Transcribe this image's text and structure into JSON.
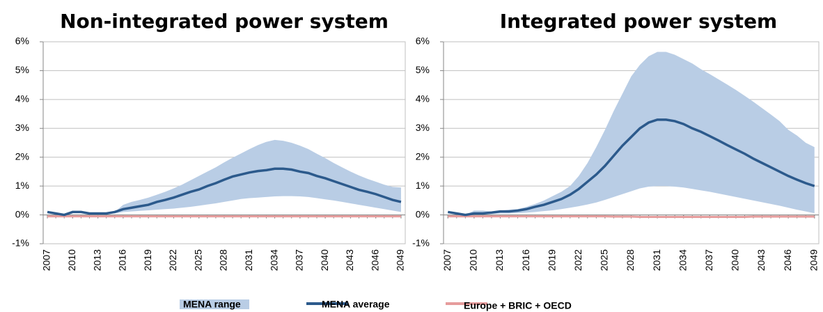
{
  "chart_data": [
    {
      "type": "line",
      "title": "Non-integrated power system",
      "x": [
        2007,
        2008,
        2009,
        2010,
        2011,
        2012,
        2013,
        2014,
        2015,
        2016,
        2017,
        2018,
        2019,
        2020,
        2021,
        2022,
        2023,
        2024,
        2025,
        2026,
        2027,
        2028,
        2029,
        2030,
        2031,
        2032,
        2033,
        2034,
        2035,
        2036,
        2037,
        2038,
        2039,
        2040,
        2041,
        2042,
        2043,
        2044,
        2045,
        2046,
        2047,
        2048,
        2049
      ],
      "xlim": [
        2006.5,
        2049.5
      ],
      "xticks": [
        2007,
        2010,
        2013,
        2016,
        2019,
        2022,
        2025,
        2028,
        2031,
        2034,
        2037,
        2040,
        2043,
        2046,
        2049
      ],
      "ylim": [
        -1,
        6
      ],
      "yticks": [
        {
          "value": -1,
          "label": "-1%"
        },
        {
          "value": 0,
          "label": "0%"
        },
        {
          "value": 1,
          "label": "1%"
        },
        {
          "value": 2,
          "label": "2%"
        },
        {
          "value": 3,
          "label": "3%"
        },
        {
          "value": 4,
          "label": "4%"
        },
        {
          "value": 5,
          "label": "5%"
        },
        {
          "value": 6,
          "label": "6%"
        }
      ],
      "grid": true,
      "range": {
        "name": "MENA range",
        "color": "#b9cde5",
        "low": [
          0.1,
          0.05,
          0,
          0.1,
          0.1,
          0.05,
          0.05,
          0.05,
          0.05,
          0.1,
          0.12,
          0.14,
          0.16,
          0.18,
          0.2,
          0.22,
          0.25,
          0.28,
          0.32,
          0.36,
          0.4,
          0.45,
          0.5,
          0.55,
          0.58,
          0.6,
          0.62,
          0.64,
          0.65,
          0.65,
          0.64,
          0.62,
          0.58,
          0.54,
          0.5,
          0.45,
          0.4,
          0.35,
          0.3,
          0.25,
          0.2,
          0.15,
          0.1
        ],
        "high": [
          0.1,
          0.05,
          0,
          0.1,
          0.1,
          0.05,
          0.05,
          0.05,
          0.1,
          0.35,
          0.45,
          0.52,
          0.6,
          0.7,
          0.8,
          0.92,
          1.05,
          1.2,
          1.35,
          1.5,
          1.65,
          1.82,
          1.98,
          2.13,
          2.28,
          2.42,
          2.53,
          2.6,
          2.57,
          2.5,
          2.4,
          2.28,
          2.12,
          1.97,
          1.8,
          1.65,
          1.5,
          1.37,
          1.25,
          1.15,
          1.05,
          0.97,
          0.95
        ]
      },
      "series": [
        {
          "name": "MENA average",
          "color": "#2c5a8c",
          "values": [
            0.1,
            0.05,
            0,
            0.1,
            0.1,
            0.05,
            0.05,
            0.05,
            0.1,
            0.2,
            0.25,
            0.3,
            0.35,
            0.45,
            0.52,
            0.6,
            0.7,
            0.8,
            0.88,
            1.0,
            1.1,
            1.22,
            1.33,
            1.4,
            1.47,
            1.52,
            1.55,
            1.6,
            1.6,
            1.57,
            1.5,
            1.45,
            1.35,
            1.27,
            1.17,
            1.07,
            0.97,
            0.87,
            0.8,
            0.72,
            0.62,
            0.52,
            0.45
          ]
        },
        {
          "name": "Europe + BRIC + OECD",
          "color": "#e69c9c",
          "values": [
            -0.05,
            -0.05,
            -0.05,
            -0.05,
            -0.05,
            -0.05,
            -0.05,
            -0.05,
            -0.05,
            -0.05,
            -0.05,
            -0.05,
            -0.05,
            -0.05,
            -0.05,
            -0.05,
            -0.05,
            -0.05,
            -0.05,
            -0.05,
            -0.05,
            -0.05,
            -0.05,
            -0.05,
            -0.05,
            -0.05,
            -0.05,
            -0.05,
            -0.05,
            -0.05,
            -0.05,
            -0.05,
            -0.05,
            -0.05,
            -0.05,
            -0.05,
            -0.05,
            -0.05,
            -0.05,
            -0.05,
            -0.05,
            -0.05,
            -0.05
          ]
        }
      ]
    },
    {
      "type": "line",
      "title": "Integrated power system",
      "x": [
        2007,
        2008,
        2009,
        2010,
        2011,
        2012,
        2013,
        2014,
        2015,
        2016,
        2017,
        2018,
        2019,
        2020,
        2021,
        2022,
        2023,
        2024,
        2025,
        2026,
        2027,
        2028,
        2029,
        2030,
        2031,
        2032,
        2033,
        2034,
        2035,
        2036,
        2037,
        2038,
        2039,
        2040,
        2041,
        2042,
        2043,
        2044,
        2045,
        2046,
        2047,
        2048,
        2049
      ],
      "xlim": [
        2006.5,
        2049.5
      ],
      "xticks": [
        2007,
        2010,
        2013,
        2016,
        2019,
        2022,
        2025,
        2028,
        2031,
        2034,
        2037,
        2040,
        2043,
        2046,
        2049
      ],
      "ylim": [
        -1,
        6
      ],
      "yticks": [
        {
          "value": -1,
          "label": "-1%"
        },
        {
          "value": 0,
          "label": "0%"
        },
        {
          "value": 1,
          "label": "1%"
        },
        {
          "value": 2,
          "label": "2%"
        },
        {
          "value": 3,
          "label": "3%"
        },
        {
          "value": 4,
          "label": "4%"
        },
        {
          "value": 5,
          "label": "5%"
        },
        {
          "value": 6,
          "label": "6%"
        }
      ],
      "grid": true,
      "range": {
        "color": "#b9cde5",
        "low": [
          0.1,
          0.05,
          0,
          0.02,
          0.02,
          0.03,
          0.05,
          0.05,
          0.06,
          0.08,
          0.1,
          0.13,
          0.16,
          0.2,
          0.25,
          0.3,
          0.36,
          0.43,
          0.52,
          0.62,
          0.72,
          0.82,
          0.92,
          0.98,
          1.0,
          1.0,
          0.98,
          0.95,
          0.9,
          0.85,
          0.8,
          0.74,
          0.68,
          0.62,
          0.56,
          0.5,
          0.44,
          0.38,
          0.32,
          0.25,
          0.18,
          0.12,
          0.06
        ],
        "high": [
          0.1,
          0.05,
          0,
          0.15,
          0.15,
          0.12,
          0.15,
          0.18,
          0.2,
          0.28,
          0.38,
          0.5,
          0.65,
          0.8,
          1.0,
          1.35,
          1.8,
          2.35,
          2.95,
          3.6,
          4.2,
          4.8,
          5.2,
          5.5,
          5.65,
          5.65,
          5.55,
          5.4,
          5.25,
          5.05,
          4.88,
          4.7,
          4.52,
          4.33,
          4.13,
          3.92,
          3.7,
          3.48,
          3.25,
          2.95,
          2.75,
          2.5,
          2.35
        ]
      },
      "series": [
        {
          "color": "#2c5a8c",
          "values": [
            0.1,
            0.05,
            0,
            0.05,
            0.05,
            0.08,
            0.12,
            0.12,
            0.15,
            0.2,
            0.28,
            0.35,
            0.45,
            0.55,
            0.7,
            0.9,
            1.15,
            1.4,
            1.7,
            2.05,
            2.4,
            2.7,
            3.0,
            3.2,
            3.3,
            3.3,
            3.25,
            3.15,
            3.0,
            2.88,
            2.73,
            2.58,
            2.42,
            2.27,
            2.12,
            1.95,
            1.8,
            1.65,
            1.5,
            1.35,
            1.22,
            1.1,
            1.0
          ]
        },
        {
          "color": "#e69c9c",
          "values": [
            -0.05,
            -0.05,
            -0.05,
            -0.05,
            -0.05,
            -0.05,
            -0.05,
            -0.05,
            -0.05,
            -0.05,
            -0.05,
            -0.05,
            -0.05,
            -0.05,
            -0.05,
            -0.05,
            -0.05,
            -0.05,
            -0.05,
            -0.06,
            -0.06,
            -0.06,
            -0.07,
            -0.07,
            -0.07,
            -0.07,
            -0.07,
            -0.07,
            -0.07,
            -0.07,
            -0.07,
            -0.07,
            -0.07,
            -0.07,
            -0.07,
            -0.06,
            -0.06,
            -0.06,
            -0.06,
            -0.06,
            -0.06,
            -0.06,
            -0.06
          ]
        }
      ]
    }
  ]
}
